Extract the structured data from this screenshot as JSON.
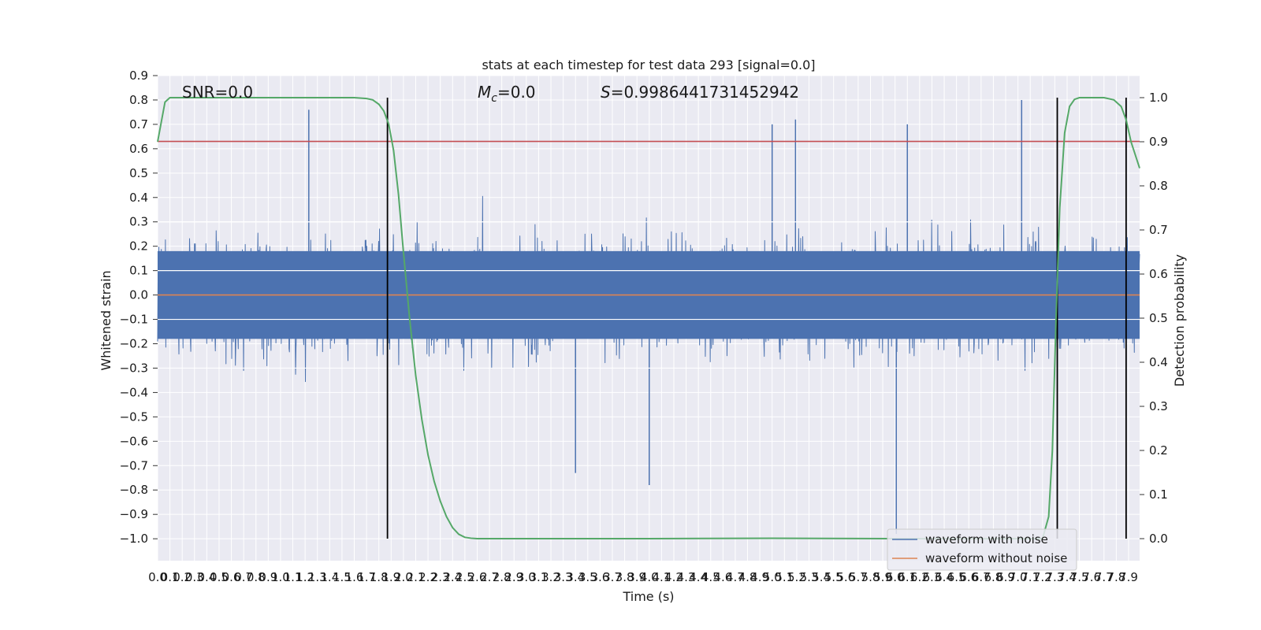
{
  "chart_data": {
    "type": "line",
    "title": "stats at each timestep for test data 293 [signal=0.0]",
    "xlabel": "Time (s)",
    "ylabel": "Whitened strain",
    "y2label": "Detection probability",
    "annotations": {
      "snr": "SNR=0.0",
      "mc_symbol": "M",
      "mc_sub": "c",
      "mc_value": "=0.0",
      "s_symbol": "S",
      "s_value": "=0.9986441731452942"
    },
    "xlim": [
      0.0,
      7.99
    ],
    "ylim": [
      -1.09,
      0.9
    ],
    "y2lim": [
      -0.05,
      1.05
    ],
    "x_ticks": [
      0.0,
      0.1,
      0.2,
      0.3,
      0.4,
      0.5,
      0.6,
      0.7,
      0.8,
      0.9,
      1.0,
      1.1,
      1.2,
      1.3,
      1.4,
      1.5,
      1.6,
      1.7,
      1.8,
      1.9,
      2.0,
      2.1,
      2.2,
      2.3,
      2.4,
      2.5,
      2.6,
      2.7,
      2.8,
      2.9,
      3.0,
      3.1,
      3.2,
      3.3,
      3.4,
      3.5,
      3.6,
      3.7,
      3.8,
      3.9,
      4.0,
      4.1,
      4.2,
      4.3,
      4.4,
      4.5,
      4.6,
      4.7,
      4.8,
      4.9,
      5.0,
      5.1,
      5.2,
      5.3,
      5.4,
      5.5,
      5.6,
      5.7,
      5.8,
      5.9,
      6.0,
      6.1,
      6.2,
      6.3,
      6.4,
      6.5,
      6.6,
      6.7,
      6.8,
      6.9,
      7.0,
      7.1,
      7.2,
      7.3,
      7.4,
      7.5,
      7.6,
      7.7,
      7.8,
      7.9
    ],
    "x_tick_labels": [
      "0.0",
      "0.1",
      "0.2",
      "0.3",
      "0.4",
      "0.5",
      "0.6",
      "0.7",
      "0.8",
      "0.9",
      "1.0",
      "1.1",
      "1.2",
      "1.3",
      "1.4",
      "1.5",
      "1.6",
      "1.7",
      "1.8",
      "1.9",
      "2.0",
      "2.1",
      "2.2",
      "2.3",
      "2.4",
      "2.5",
      "2.6",
      "2.7",
      "2.8",
      "2.9",
      "3.0",
      "3.1",
      "3.2",
      "3.3",
      "3.4",
      "3.5",
      "3.6",
      "3.7",
      "3.8",
      "3.9",
      "4.0",
      "4.1",
      "4.2",
      "4.3",
      "4.4",
      "4.5",
      "4.6",
      "4.7",
      "4.8",
      "4.9",
      "5.0",
      "5.1",
      "5.2",
      "5.3",
      "5.4",
      "5.5",
      "5.6",
      "5.7",
      "5.8",
      "5.9",
      "6.0",
      "6.1",
      "6.2",
      "6.3",
      "6.4",
      "6.5",
      "6.6",
      "6.7",
      "6.8",
      "6.9",
      "7.0",
      "7.1",
      "7.2",
      "7.3",
      "7.4",
      "7.5",
      "7.6",
      "7.7",
      "7.8",
      "7.9"
    ],
    "y_ticks": [
      -1.0,
      -0.9,
      -0.8,
      -0.7,
      -0.6,
      -0.5,
      -0.4,
      -0.3,
      -0.2,
      -0.1,
      0.0,
      0.1,
      0.2,
      0.3,
      0.4,
      0.5,
      0.6,
      0.7,
      0.8,
      0.9
    ],
    "y_tick_labels": [
      "−1.0",
      "−0.9",
      "−0.8",
      "−0.7",
      "−0.6",
      "−0.5",
      "−0.4",
      "−0.3",
      "−0.2",
      "−0.1",
      "0.0",
      "0.1",
      "0.2",
      "0.3",
      "0.4",
      "0.5",
      "0.6",
      "0.7",
      "0.8",
      "0.9"
    ],
    "y2_ticks": [
      0.0,
      0.1,
      0.2,
      0.3,
      0.4,
      0.5,
      0.6,
      0.7,
      0.8,
      0.9,
      1.0
    ],
    "y2_tick_labels": [
      "0.0",
      "0.1",
      "0.2",
      "0.3",
      "0.4",
      "0.5",
      "0.6",
      "0.7",
      "0.8",
      "0.9",
      "1.0"
    ],
    "grid": true,
    "legend": {
      "placement": "lower-right",
      "entries": [
        "waveform with noise",
        "waveform without noise"
      ]
    },
    "series": [
      {
        "name": "waveform with noise",
        "color": "#4c72b0",
        "axis": "left",
        "kind": "noise-band",
        "description_values": {
          "dense_band": [
            -0.18,
            0.18
          ],
          "peak_spikes": [
            {
              "x": 1.23,
              "y": 0.76
            },
            {
              "x": 5.0,
              "y": 0.7
            },
            {
              "x": 5.19,
              "y": 0.72
            },
            {
              "x": 6.1,
              "y": 0.7
            },
            {
              "x": 7.03,
              "y": 0.8
            },
            {
              "x": 6.01,
              "y": -0.98
            },
            {
              "x": 4.0,
              "y": -0.78
            },
            {
              "x": 3.4,
              "y": -0.73
            }
          ]
        }
      },
      {
        "name": "waveform without noise",
        "color": "#dd8452",
        "axis": "left",
        "x": [
          0.0,
          7.99
        ],
        "y": [
          0.0,
          0.0
        ]
      },
      {
        "color": "#55a868",
        "axis": "right",
        "x": [
          0.0,
          0.06,
          0.1,
          0.2,
          0.4,
          0.8,
          1.2,
          1.6,
          1.7,
          1.75,
          1.8,
          1.84,
          1.88,
          1.92,
          1.96,
          2.0,
          2.05,
          2.1,
          2.15,
          2.2,
          2.25,
          2.3,
          2.35,
          2.4,
          2.45,
          2.5,
          2.55,
          2.6,
          2.7,
          3.0,
          4.0,
          5.0,
          6.0,
          6.5,
          6.8,
          7.0,
          7.2,
          7.25,
          7.28,
          7.31,
          7.34,
          7.38,
          7.42,
          7.46,
          7.5,
          7.6,
          7.7,
          7.78,
          7.84,
          7.88,
          7.92,
          7.99
        ],
        "y": [
          0.9,
          0.99,
          1.0,
          1.0,
          1.0,
          1.0,
          1.0,
          1.0,
          0.998,
          0.995,
          0.985,
          0.97,
          0.94,
          0.88,
          0.78,
          0.65,
          0.5,
          0.37,
          0.27,
          0.19,
          0.13,
          0.085,
          0.05,
          0.025,
          0.01,
          0.003,
          0.001,
          0.0,
          0.0,
          0.0,
          0.0,
          0.001,
          0.0,
          0.0,
          0.0,
          0.0,
          0.0,
          0.05,
          0.2,
          0.5,
          0.75,
          0.92,
          0.98,
          0.996,
          1.0,
          1.0,
          1.0,
          0.995,
          0.98,
          0.95,
          0.9,
          0.84
        ]
      }
    ],
    "horizontal_lines": [
      {
        "axis": "left",
        "y": 0.63,
        "color": "#c44e52"
      }
    ],
    "vertical_lines": [
      {
        "x": 1.87,
        "color": "#000000"
      },
      {
        "x": 7.32,
        "color": "#000000"
      },
      {
        "x": 7.88,
        "color": "#000000"
      }
    ]
  }
}
